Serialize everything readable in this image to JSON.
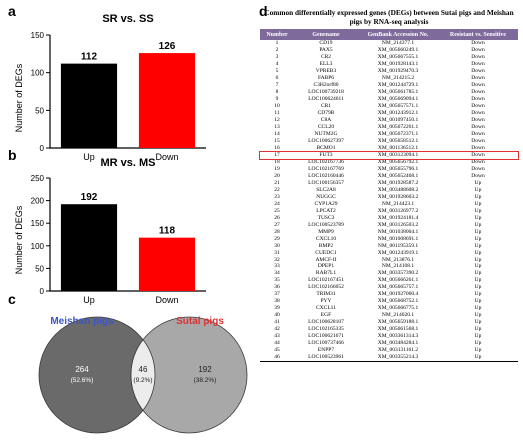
{
  "panels": {
    "a": "a",
    "b": "b",
    "c": "c",
    "d": "d"
  },
  "chart_data": [
    {
      "type": "bar",
      "title": "SR vs. SS",
      "ylabel": "Number of DEGs",
      "categories": [
        "Up",
        "Down"
      ],
      "values": [
        112,
        126
      ],
      "data_labels": [
        "112",
        "126"
      ],
      "colors": [
        "#000000",
        "#ff0000"
      ],
      "ylim": [
        0,
        150
      ],
      "yticks": [
        0,
        50,
        100,
        150
      ]
    },
    {
      "type": "bar",
      "title": "MR vs. MS",
      "ylabel": "Number of DEGs",
      "categories": [
        "Up",
        "Down"
      ],
      "values": [
        192,
        118
      ],
      "data_labels": [
        "192",
        "118"
      ],
      "colors": [
        "#000000",
        "#ff0000"
      ],
      "ylim": [
        0,
        250
      ],
      "yticks": [
        0,
        50,
        100,
        150,
        200,
        250
      ]
    },
    {
      "type": "venn",
      "sets": [
        {
          "name": "Meishan pigs",
          "color": "#3a55c8"
        },
        {
          "name": "Sutai pigs",
          "color": "#e03030"
        }
      ],
      "regions": [
        {
          "count": "264",
          "percent": "(52.6%)"
        },
        {
          "count": "46",
          "percent": "(9.2%)"
        },
        {
          "count": "192",
          "percent": "(38.2%)"
        }
      ]
    }
  ],
  "table": {
    "title_line1": "Common differentially expressed genes (DEGs) between Sutai pigs and Meishan",
    "title_line2": "pigs by RNA-seq analysis",
    "headers": [
      "Number",
      "Genename",
      "GenBank Accession No.",
      "Resistant vs. Sensitive"
    ],
    "highlight_row": 17,
    "rows": [
      [
        "1",
        "CD19",
        "NM_214377.1",
        "Down"
      ],
      [
        "2",
        "PAX5",
        "XM_005660249.1",
        "Down"
      ],
      [
        "3",
        "CR2",
        "XM_005667555.1",
        "Down"
      ],
      [
        "4",
        "ELL3",
        "XM_001928143.1",
        "Down"
      ],
      [
        "5",
        "VPREB3",
        "XM_001929470.3",
        "Down"
      ],
      [
        "6",
        "FABP6",
        "NM_214215.2",
        "Down"
      ],
      [
        "7",
        "C3H2orf80",
        "XM_001244729.1",
        "Down"
      ],
      [
        "8",
        "LOC100739218",
        "XM_005661785.1",
        "Down"
      ],
      [
        "9",
        "LOC100624611",
        "XM_005669094.1",
        "Down"
      ],
      [
        "10",
        "CR1",
        "XM_005657571.1",
        "Down"
      ],
      [
        "11",
        "CD79B",
        "XM_001243912.1",
        "Down"
      ],
      [
        "12",
        "C8A",
        "XM_001097450.1",
        "Down"
      ],
      [
        "13",
        "CCL20",
        "XM_005672261.1",
        "Down"
      ],
      [
        "14",
        "NUTM2G",
        "XM_005672371.1",
        "Down"
      ],
      [
        "15",
        "LOC100627397",
        "XM_005658512.1",
        "Down"
      ],
      [
        "16",
        "BCMO1",
        "XM_001136512.1",
        "Down"
      ],
      [
        "17",
        "FUT3",
        "XM_003123094.1",
        "Down"
      ],
      [
        "18",
        "LOC102167736",
        "XM_005656792.1",
        "Down"
      ],
      [
        "19",
        "LOC102167769",
        "XM_005655796.1",
        "Down"
      ],
      [
        "20",
        "LOC102160446",
        "XM_005652468.1",
        "Down"
      ],
      [
        "21",
        "LOC100156357",
        "XM_001928587.2",
        "Up"
      ],
      [
        "22",
        "SLC2A8",
        "XM_003488608.2",
        "Up"
      ],
      [
        "23",
        "NUGGC",
        "XM_001928603.2",
        "Up"
      ],
      [
        "24",
        "CYP1A29",
        "NM_214423.1",
        "Up"
      ],
      [
        "25",
        "LPCAT2",
        "XM_003126977.2",
        "Up"
      ],
      [
        "26",
        "TUSC3",
        "XM_001924181.4",
        "Up"
      ],
      [
        "27",
        "LOC100523789",
        "XM_003126503.2",
        "Up"
      ],
      [
        "28",
        "MMP9",
        "NM_001038004.1",
        "Up"
      ],
      [
        "29",
        "CXCL10",
        "NM_001008691.1",
        "Up"
      ],
      [
        "30",
        "BMP2",
        "NM_001195359.1",
        "Up"
      ],
      [
        "31",
        "CUEDC1",
        "XM_001243919.1",
        "Up"
      ],
      [
        "32",
        "AMCF-II",
        "NM_213876.1",
        "Up"
      ],
      [
        "33",
        "DPEP1",
        "NM_214108.1",
        "Up"
      ],
      [
        "34",
        "RAB7L1",
        "XM_003357390.2",
        "Up"
      ],
      [
        "35",
        "LOC102167451",
        "XM_005666261.1",
        "Up"
      ],
      [
        "36",
        "LOC102166052",
        "XM_005665757.1",
        "Up"
      ],
      [
        "37",
        "TRIM31",
        "XM_001927060.4",
        "Up"
      ],
      [
        "38",
        "PYY",
        "XM_005668752.1",
        "Up"
      ],
      [
        "39",
        "CXCL11",
        "XM_005666775.1",
        "Up"
      ],
      [
        "40",
        "EGF",
        "NM_214020.1",
        "Up"
      ],
      [
        "41",
        "LOC100628107",
        "XM_005659188.1",
        "Up"
      ],
      [
        "42",
        "LOC102165335",
        "XM_005661568.1",
        "Up"
      ],
      [
        "43",
        "LOC100621671",
        "XM_003361314.3",
        "Up"
      ],
      [
        "44",
        "LOC100737466",
        "XM_003484284.1",
        "Up"
      ],
      [
        "45",
        "ENPP7",
        "XM_003131161.2",
        "Up"
      ],
      [
        "46",
        "LOC100523961",
        "XM_003355214.3",
        "Up"
      ]
    ]
  }
}
